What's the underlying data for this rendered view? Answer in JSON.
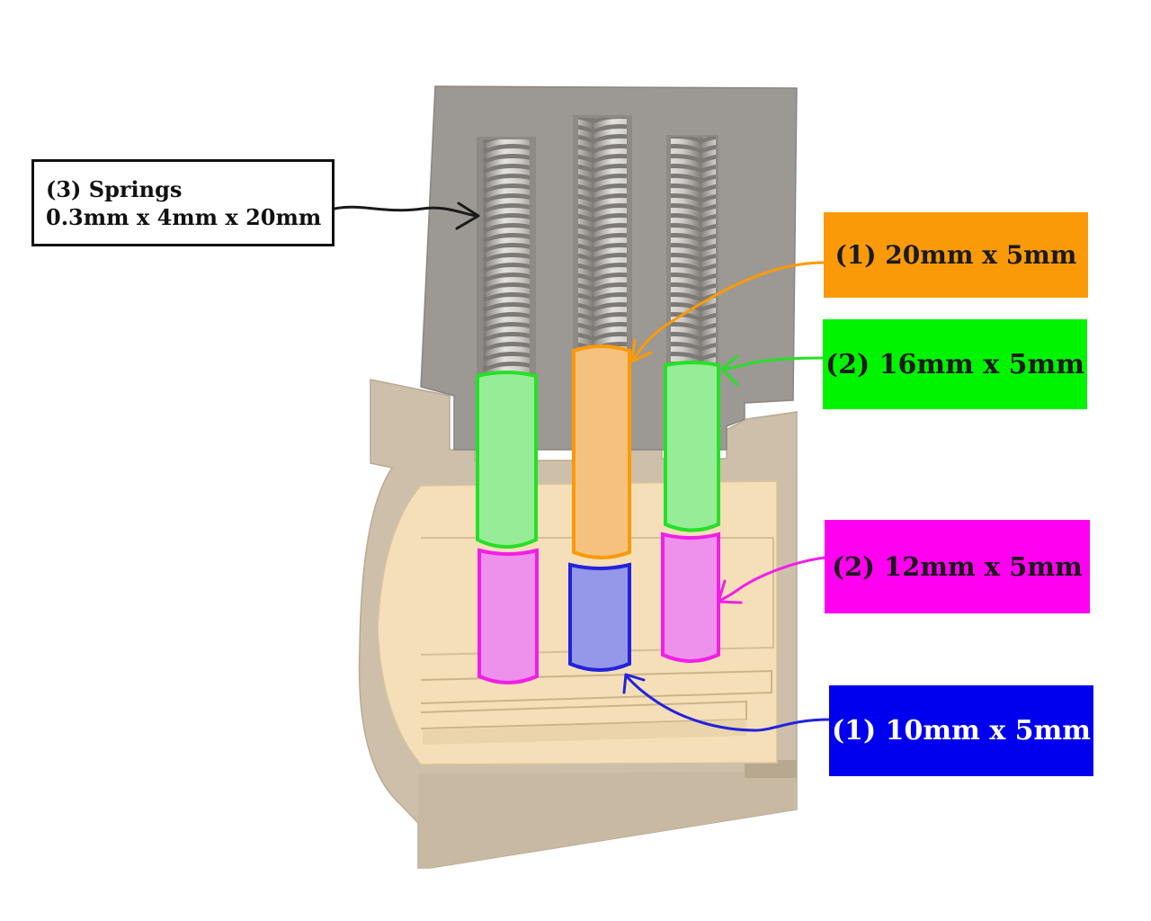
{
  "callouts": {
    "springs": {
      "line1": "(3) Springs",
      "line2": "0.3mm x 4mm x 20mm"
    },
    "pin_20mm": {
      "label": "(1) 20mm x 5mm"
    },
    "pin_16mm": {
      "label": "(2) 16mm x 5mm"
    },
    "pin_12mm": {
      "label": "(2) 12mm x 5mm"
    },
    "pin_10mm": {
      "label": "(1) 10mm x 5mm"
    }
  },
  "colors": {
    "springs_box_bg": "#ffffff",
    "springs_box_border": "#111111",
    "pin_20mm_box": "#fb9a08",
    "pin_20mm_text": "#1a1a1a",
    "pin_16mm_box": "#00f400",
    "pin_16mm_text": "#1a1a1a",
    "pin_12mm_box": "#ff00f0",
    "pin_12mm_text": "#1a1a1a",
    "pin_10mm_box": "#0000ef",
    "pin_10mm_text": "#ffffff",
    "spring_holder": "#9c9894",
    "lock_housing": "#cdbfa9",
    "lock_plug": "#f4dfb8",
    "pin_orange_fill": "#f4c17f",
    "pin_green_fill": "#97ec97",
    "pin_pink_fill": "#ee91ec",
    "pin_blue_fill": "#9597e8"
  },
  "icons": {
    "springs_arrow": "arrow-right-icon",
    "pin_arrows": "arrow-left-icon"
  }
}
